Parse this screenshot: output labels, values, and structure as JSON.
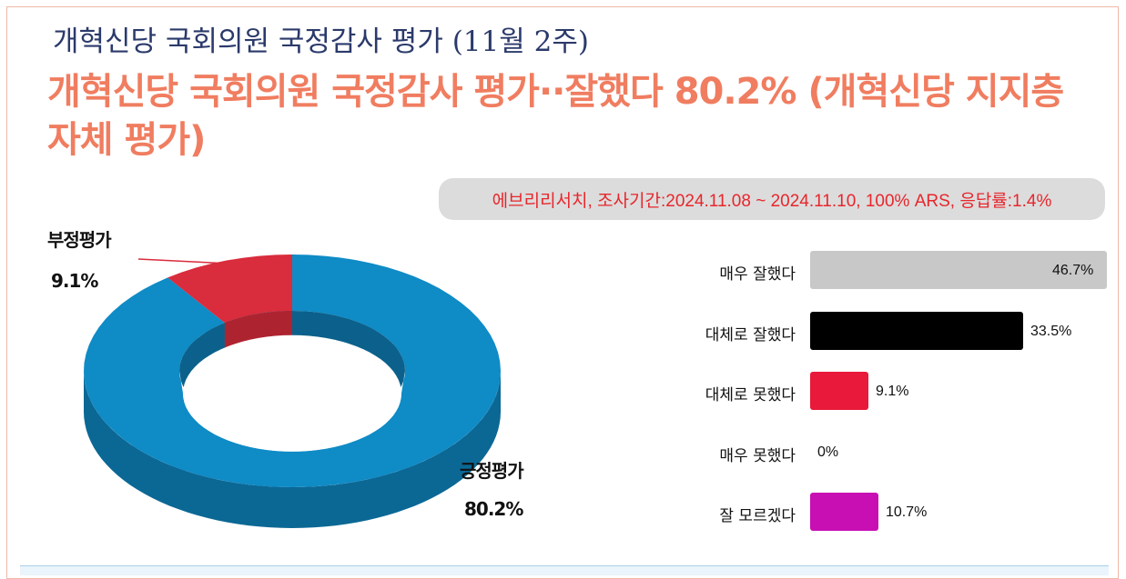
{
  "header": {
    "subtitle": "개혁신당 국회의원 국정감사 평가 (11월 2주)",
    "headline": "개혁신당 국회의원 국정감사 평가··잘했다 80.2% (개혁신당 지지층 자체 평가)",
    "survey_info": "에브리리서치, 조사기간:2024.11.08 ~ 2024.11.10, 100% ARS, 응답률:1.4%"
  },
  "colors": {
    "positive": "#0f8bc6",
    "negative": "#d92c3c",
    "headline": "#f07d60",
    "survey_text": "#e8262c"
  },
  "chart_data": [
    {
      "type": "pie",
      "style": "3d-donut",
      "labels": [
        "긍정평가",
        "부정평가"
      ],
      "values": [
        80.2,
        9.1
      ],
      "value_labels": [
        "80.2%",
        "9.1%"
      ],
      "colors": [
        "#0f8bc6",
        "#d92c3c"
      ]
    },
    {
      "type": "bar",
      "orientation": "horizontal",
      "categories": [
        "매우 잘했다",
        "대체로 잘했다",
        "대체로 못했다",
        "매우 못했다",
        "잘 모르겠다"
      ],
      "values": [
        46.7,
        33.5,
        9.1,
        0,
        10.7
      ],
      "value_labels": [
        "46.7%",
        "33.5%",
        "9.1%",
        "0%",
        "10.7%"
      ],
      "colors": [
        "#c8c8c8",
        "#000000",
        "#e8193a",
        "#e8193a",
        "#c80fb4"
      ],
      "xlim": [
        0,
        46.7
      ]
    }
  ]
}
